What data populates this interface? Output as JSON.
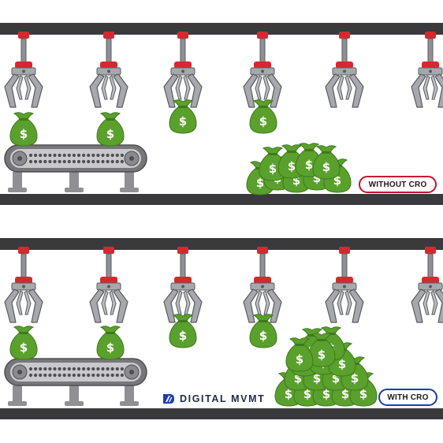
{
  "scenes": [
    {
      "id": "without-cro",
      "label": "WITHOUT CRO",
      "accent_color": "#c8102e",
      "claws_with_bag": 4,
      "bags_on_floor": 9
    },
    {
      "id": "with-cro",
      "label": "WITH CRO",
      "accent_color": "#1c3faa",
      "claws_with_bag": 4,
      "bags_on_floor": 16
    }
  ],
  "brand": {
    "name": "DIGITAL MVMT",
    "logo": "digital-mvmt-logo-icon",
    "color": "#1f2a44"
  },
  "icons": {
    "claw": "claw-arm-icon",
    "bag": "money-bag-icon",
    "conveyor": "conveyor-belt-icon"
  },
  "colors": {
    "rail": "#3a3a3c",
    "claw_cap": "#d7282f",
    "claw_metal": "#9a9ca3",
    "bag_green": "#5aa02c",
    "conveyor_gray": "#8f8f94"
  }
}
